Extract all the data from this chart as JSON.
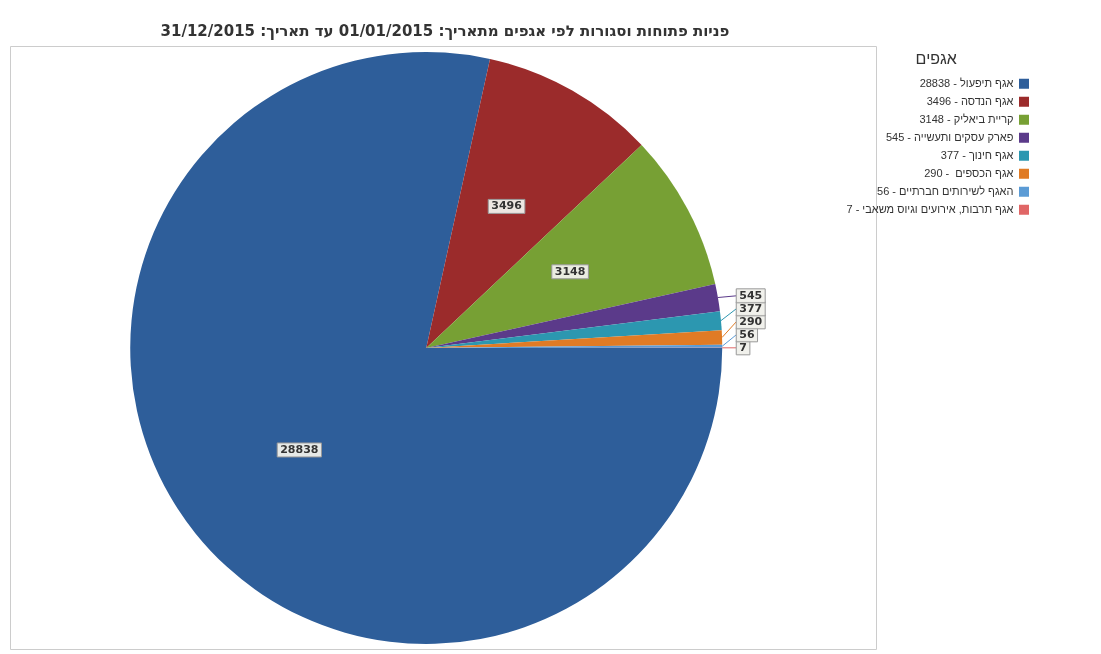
{
  "chart_data": {
    "type": "pie",
    "title": "פניות פתוחות וסגורות לפי אגפים מתאריך: 01/01/2015  עד תאריך: 31/12/2015",
    "legend_title": "אגפים",
    "categories": [
      "אגף תיפעול - 28838",
      "אגף הנדסה - 3496",
      "קריית ביאליק - 3148",
      "פארק עסקים ותעשייה - 545",
      "אגף חינוך - 377",
      "אגף הכספים  - 290",
      "האגף לשירותים חברתיים - 56",
      "אגף תרבות, אירועים וגיוס משאבי - 7"
    ],
    "values": [
      28838,
      3496,
      3148,
      545,
      377,
      290,
      56,
      7
    ],
    "colors": [
      "#2e5e9a",
      "#9b2b2b",
      "#77a034",
      "#5b3a8a",
      "#2c97b0",
      "#e07b25",
      "#5b9bd5",
      "#e06666"
    ],
    "data_labels": true,
    "legend": "right"
  }
}
